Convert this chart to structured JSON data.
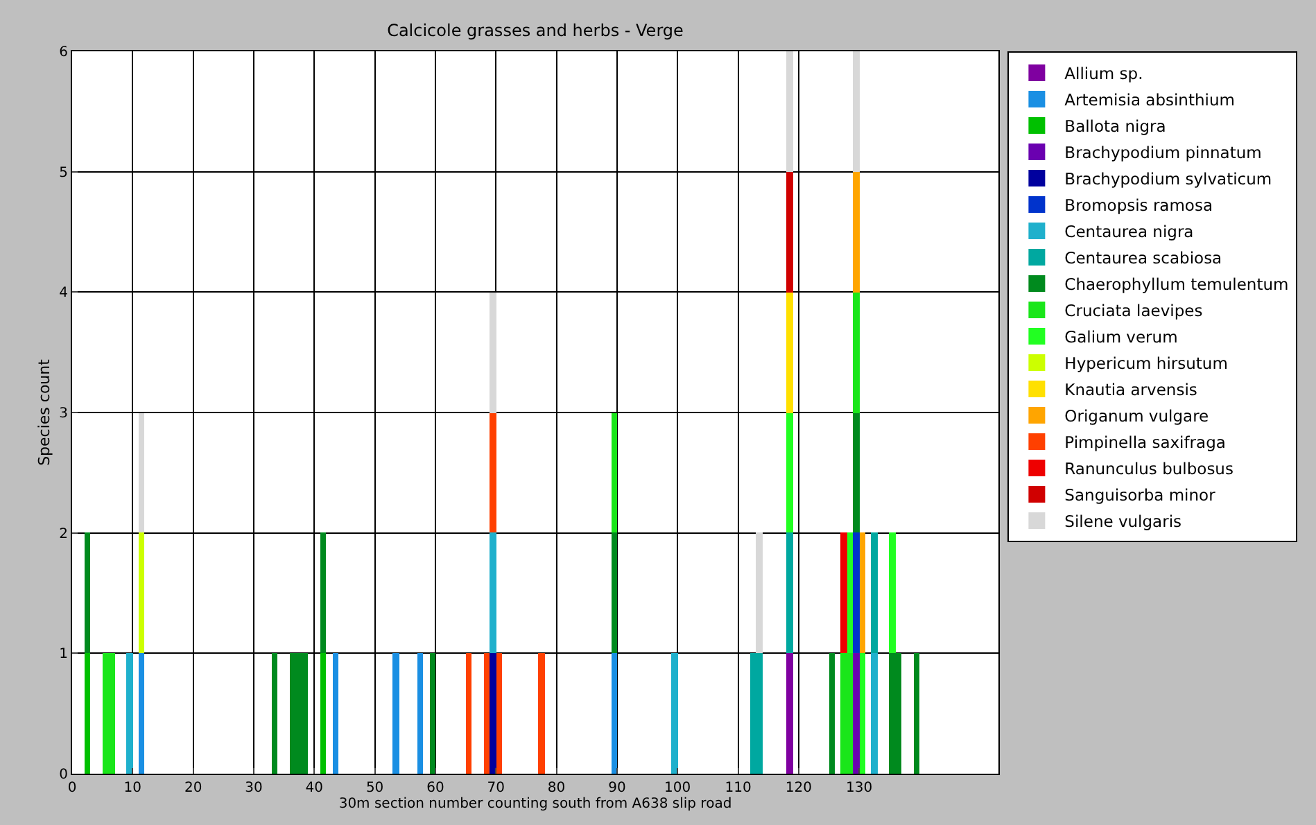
{
  "chart_data": {
    "type": "bar",
    "stacked": true,
    "title": "Calcicole grasses and herbs - Verge",
    "xlabel": "30m section number counting south from A638 slip road",
    "ylabel": "Species count",
    "x": [
      2,
      5,
      6,
      9,
      11,
      33,
      36,
      37,
      38,
      41,
      43,
      53,
      57,
      59,
      65,
      68,
      69,
      70,
      77,
      89,
      99,
      112,
      113,
      118,
      125,
      127,
      128,
      129,
      130,
      132,
      135,
      136,
      139
    ],
    "xlim": [
      0,
      153
    ],
    "xticks": [
      0,
      10,
      20,
      30,
      40,
      50,
      60,
      70,
      80,
      90,
      100,
      110,
      120,
      130
    ],
    "ylim": [
      0,
      6
    ],
    "yticks": [
      0,
      1,
      2,
      3,
      4,
      5,
      6
    ],
    "grid": true,
    "legend": "right",
    "series": [
      {
        "name": "Allium sp.",
        "color": "#7f00a0",
        "values": [
          null,
          null,
          null,
          null,
          null,
          null,
          null,
          null,
          null,
          null,
          null,
          null,
          null,
          null,
          null,
          null,
          null,
          null,
          null,
          null,
          null,
          null,
          null,
          1,
          null,
          null,
          null,
          null,
          null,
          null,
          null,
          null,
          null
        ]
      },
      {
        "name": "Artemisia absinthium",
        "color": "#1a8fe3",
        "values": [
          null,
          null,
          null,
          null,
          1,
          null,
          null,
          null,
          null,
          null,
          1,
          1,
          1,
          null,
          null,
          null,
          null,
          null,
          null,
          1,
          null,
          null,
          null,
          null,
          null,
          null,
          null,
          null,
          null,
          null,
          null,
          null,
          null
        ]
      },
      {
        "name": "Ballota nigra",
        "color": "#00c000",
        "values": [
          1,
          null,
          null,
          null,
          null,
          null,
          null,
          null,
          null,
          1,
          null,
          null,
          null,
          null,
          null,
          null,
          null,
          null,
          null,
          null,
          null,
          null,
          null,
          null,
          null,
          null,
          null,
          null,
          null,
          null,
          null,
          null,
          null
        ]
      },
      {
        "name": "Brachypodium pinnatum",
        "color": "#6a00b0",
        "values": [
          null,
          null,
          null,
          null,
          null,
          null,
          null,
          null,
          null,
          null,
          null,
          null,
          null,
          null,
          null,
          null,
          null,
          null,
          null,
          null,
          null,
          null,
          null,
          null,
          null,
          null,
          null,
          1,
          null,
          null,
          null,
          null,
          null
        ]
      },
      {
        "name": "Brachypodium sylvaticum",
        "color": "#00009e",
        "values": [
          null,
          null,
          null,
          null,
          null,
          null,
          null,
          null,
          null,
          null,
          null,
          null,
          null,
          null,
          null,
          null,
          1,
          null,
          null,
          null,
          null,
          null,
          null,
          null,
          null,
          null,
          null,
          null,
          null,
          null,
          null,
          null,
          null
        ]
      },
      {
        "name": "Bromopsis ramosa",
        "color": "#0033cc",
        "values": [
          null,
          null,
          null,
          null,
          null,
          null,
          null,
          null,
          null,
          null,
          null,
          null,
          null,
          null,
          null,
          null,
          null,
          null,
          null,
          null,
          null,
          null,
          null,
          null,
          null,
          null,
          null,
          1,
          null,
          null,
          null,
          null,
          null
        ]
      },
      {
        "name": "Centaurea nigra",
        "color": "#1fb0cc",
        "values": [
          null,
          null,
          null,
          1,
          null,
          null,
          null,
          null,
          null,
          null,
          null,
          null,
          null,
          null,
          null,
          null,
          1,
          null,
          null,
          null,
          1,
          null,
          null,
          null,
          null,
          null,
          null,
          null,
          null,
          1,
          null,
          null,
          null
        ]
      },
      {
        "name": "Centaurea scabiosa",
        "color": "#00a8a0",
        "values": [
          null,
          null,
          null,
          null,
          null,
          null,
          null,
          null,
          null,
          null,
          null,
          null,
          null,
          null,
          null,
          null,
          null,
          null,
          null,
          null,
          null,
          1,
          1,
          1,
          null,
          null,
          null,
          null,
          null,
          1,
          null,
          null,
          null
        ]
      },
      {
        "name": "Chaerophyllum temulentum",
        "color": "#008a1e",
        "values": [
          1,
          null,
          null,
          null,
          null,
          1,
          1,
          1,
          1,
          1,
          null,
          null,
          null,
          1,
          null,
          null,
          null,
          null,
          null,
          1,
          null,
          null,
          null,
          null,
          1,
          null,
          null,
          1,
          null,
          null,
          1,
          1,
          1
        ]
      },
      {
        "name": "Cruciata laevipes",
        "color": "#1ae61a",
        "values": [
          null,
          1,
          1,
          null,
          null,
          null,
          null,
          null,
          null,
          null,
          null,
          null,
          null,
          null,
          null,
          null,
          null,
          null,
          null,
          1,
          null,
          null,
          null,
          null,
          null,
          1,
          1,
          1,
          null,
          null,
          null,
          null,
          null
        ]
      },
      {
        "name": "Galium verum",
        "color": "#22ff22",
        "values": [
          null,
          null,
          null,
          null,
          null,
          null,
          null,
          null,
          null,
          null,
          null,
          null,
          null,
          null,
          null,
          null,
          null,
          null,
          null,
          null,
          null,
          null,
          null,
          1,
          null,
          null,
          1,
          null,
          1,
          null,
          1,
          null,
          null
        ]
      },
      {
        "name": "Hypericum hirsutum",
        "color": "#ccff00",
        "values": [
          null,
          null,
          null,
          null,
          1,
          null,
          null,
          null,
          null,
          null,
          null,
          null,
          null,
          null,
          null,
          null,
          null,
          null,
          null,
          null,
          null,
          null,
          null,
          null,
          null,
          null,
          null,
          null,
          null,
          null,
          null,
          null,
          null
        ]
      },
      {
        "name": "Knautia arvensis",
        "color": "#ffe000",
        "values": [
          null,
          null,
          null,
          null,
          null,
          null,
          null,
          null,
          null,
          null,
          null,
          null,
          null,
          null,
          null,
          null,
          null,
          null,
          null,
          null,
          null,
          null,
          null,
          1,
          null,
          null,
          null,
          null,
          null,
          null,
          null,
          null,
          null
        ]
      },
      {
        "name": "Origanum vulgare",
        "color": "#ffa500",
        "values": [
          null,
          null,
          null,
          null,
          null,
          null,
          null,
          null,
          null,
          null,
          null,
          null,
          null,
          null,
          null,
          null,
          null,
          null,
          null,
          null,
          null,
          null,
          null,
          null,
          null,
          null,
          null,
          1,
          1,
          null,
          null,
          null,
          null
        ]
      },
      {
        "name": "Pimpinella saxifraga",
        "color": "#ff4000",
        "values": [
          null,
          null,
          null,
          null,
          null,
          null,
          null,
          null,
          null,
          null,
          null,
          null,
          null,
          null,
          1,
          1,
          1,
          1,
          1,
          null,
          null,
          null,
          null,
          null,
          null,
          null,
          null,
          null,
          null,
          null,
          null,
          null,
          null
        ]
      },
      {
        "name": "Ranunculus bulbosus",
        "color": "#ee0000",
        "values": [
          null,
          null,
          null,
          null,
          null,
          null,
          null,
          null,
          null,
          null,
          null,
          null,
          null,
          null,
          null,
          null,
          null,
          null,
          null,
          null,
          null,
          null,
          null,
          null,
          null,
          1,
          null,
          null,
          null,
          null,
          null,
          null,
          null
        ]
      },
      {
        "name": "Sanguisorba minor",
        "color": "#d00000",
        "values": [
          null,
          null,
          null,
          null,
          null,
          null,
          null,
          null,
          null,
          null,
          null,
          null,
          null,
          null,
          null,
          null,
          null,
          null,
          null,
          null,
          null,
          null,
          null,
          1,
          null,
          null,
          null,
          null,
          null,
          null,
          null,
          null,
          null
        ]
      },
      {
        "name": "Silene vulgaris",
        "color": "#d8d8d8",
        "values": [
          null,
          null,
          null,
          null,
          1,
          null,
          null,
          null,
          null,
          null,
          null,
          null,
          null,
          null,
          null,
          null,
          1,
          null,
          null,
          null,
          null,
          null,
          1,
          1,
          null,
          null,
          null,
          1,
          null,
          null,
          null,
          null,
          null
        ]
      }
    ]
  }
}
